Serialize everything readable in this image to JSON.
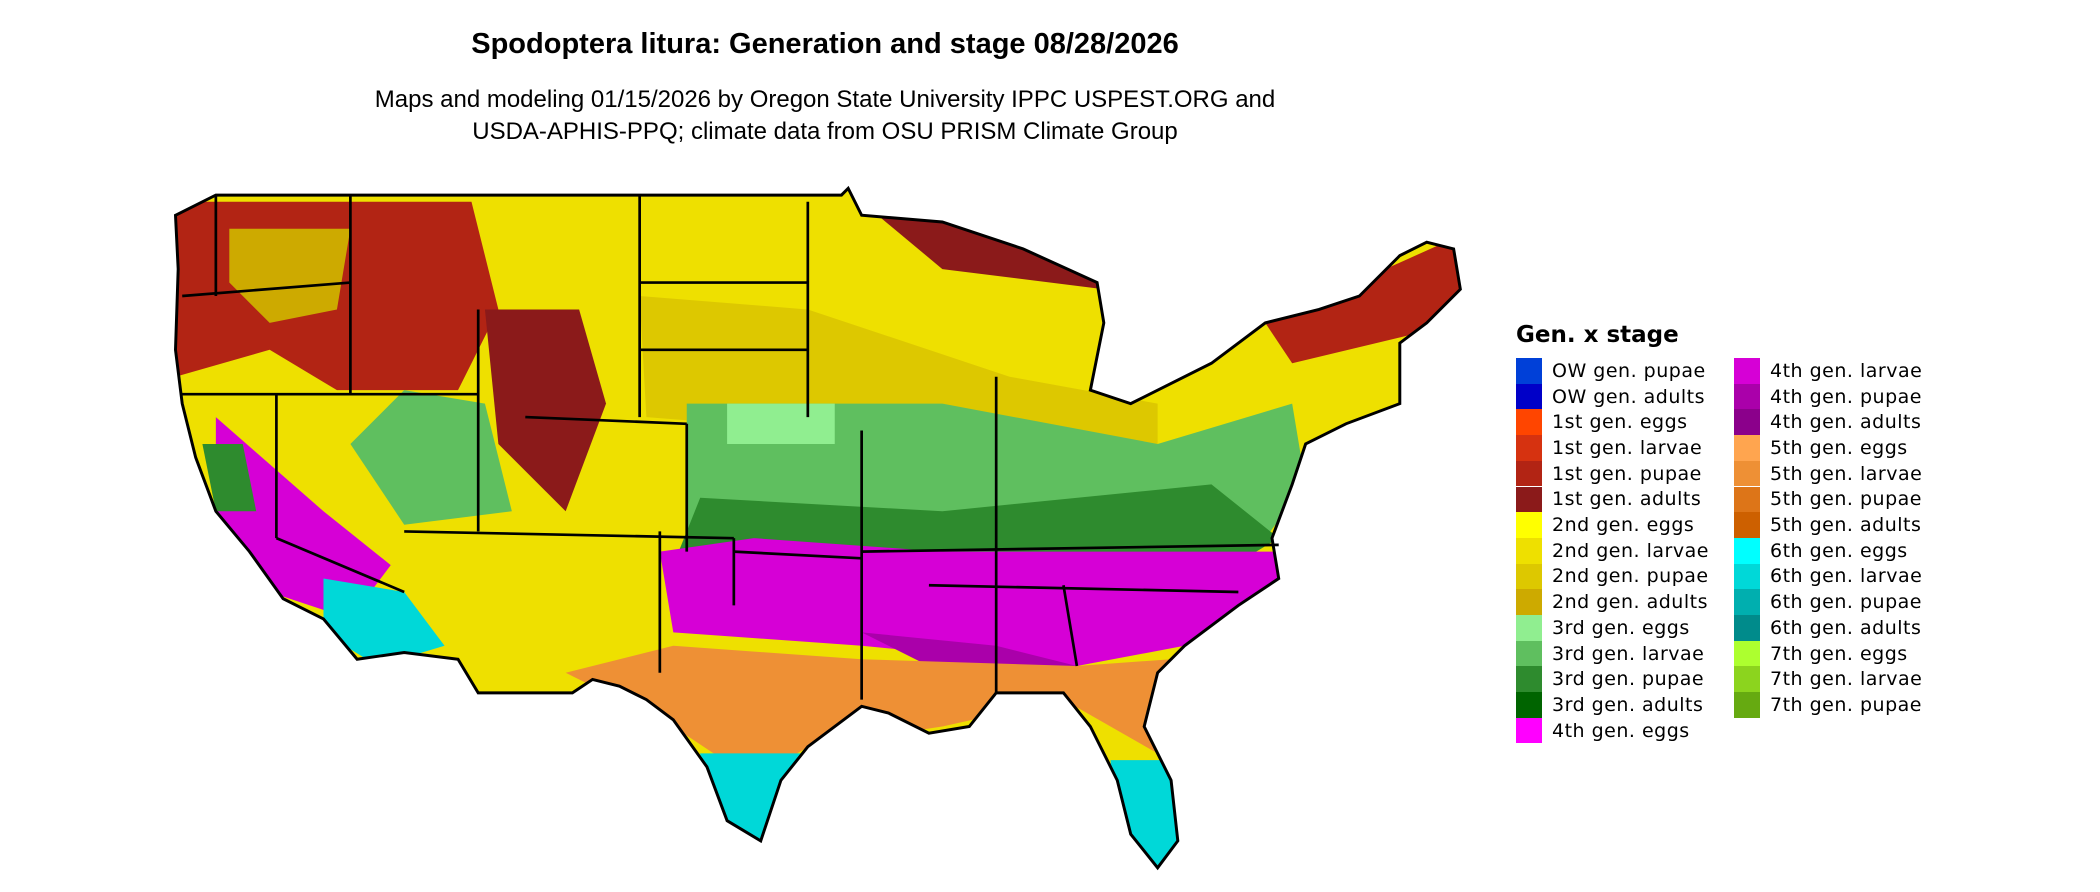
{
  "title": "Spodoptera litura: Generation and stage 08/28/2026",
  "subtitle_line1": "Maps and modeling 01/15/2026 by Oregon State University IPPC USPEST.ORG and",
  "subtitle_line2": "USDA-APHIS-PPQ; climate data from OSU PRISM Climate Group",
  "legend": {
    "title": "Gen. x stage",
    "items": [
      {
        "label": "OW gen. pupae",
        "color": "#0040D8"
      },
      {
        "label": "OW gen. adults",
        "color": "#0000C8"
      },
      {
        "label": "1st gen. eggs",
        "color": "#FF4500"
      },
      {
        "label": "1st gen. larvae",
        "color": "#D63210"
      },
      {
        "label": "1st gen. pupae",
        "color": "#B22414"
      },
      {
        "label": "1st gen. adults",
        "color": "#8B1A1A"
      },
      {
        "label": "2nd gen. eggs",
        "color": "#FFFF00"
      },
      {
        "label": "2nd gen. larvae",
        "color": "#EEE000"
      },
      {
        "label": "2nd gen. pupae",
        "color": "#DDC800"
      },
      {
        "label": "2nd gen. adults",
        "color": "#CDAA00"
      },
      {
        "label": "3rd gen. eggs",
        "color": "#90EE90"
      },
      {
        "label": "3rd gen. larvae",
        "color": "#5FBF5F"
      },
      {
        "label": "3rd gen. pupae",
        "color": "#2E8B2E"
      },
      {
        "label": "3rd gen. adults",
        "color": "#006400"
      },
      {
        "label": "4th gen. eggs",
        "color": "#FF00FF"
      },
      {
        "label": "4th gen. larvae",
        "color": "#D600D6"
      },
      {
        "label": "4th gen. pupae",
        "color": "#AA00AA"
      },
      {
        "label": "4th gen. adults",
        "color": "#8B008B"
      },
      {
        "label": "5th gen. eggs",
        "color": "#FFA54F"
      },
      {
        "label": "5th gen. larvae",
        "color": "#EE9035"
      },
      {
        "label": "5th gen. pupae",
        "color": "#DD7518"
      },
      {
        "label": "5th gen. adults",
        "color": "#CD6000"
      },
      {
        "label": "6th gen. eggs",
        "color": "#00FFFF"
      },
      {
        "label": "6th gen. larvae",
        "color": "#00D8D8"
      },
      {
        "label": "6th gen. pupae",
        "color": "#00AFAF"
      },
      {
        "label": "6th gen. adults",
        "color": "#008B8B"
      },
      {
        "label": "7th gen. eggs",
        "color": "#ADFF2F"
      },
      {
        "label": "7th gen. larvae",
        "color": "#8CD41E"
      },
      {
        "label": "7th gen. pupae",
        "color": "#66AA11"
      }
    ]
  }
}
